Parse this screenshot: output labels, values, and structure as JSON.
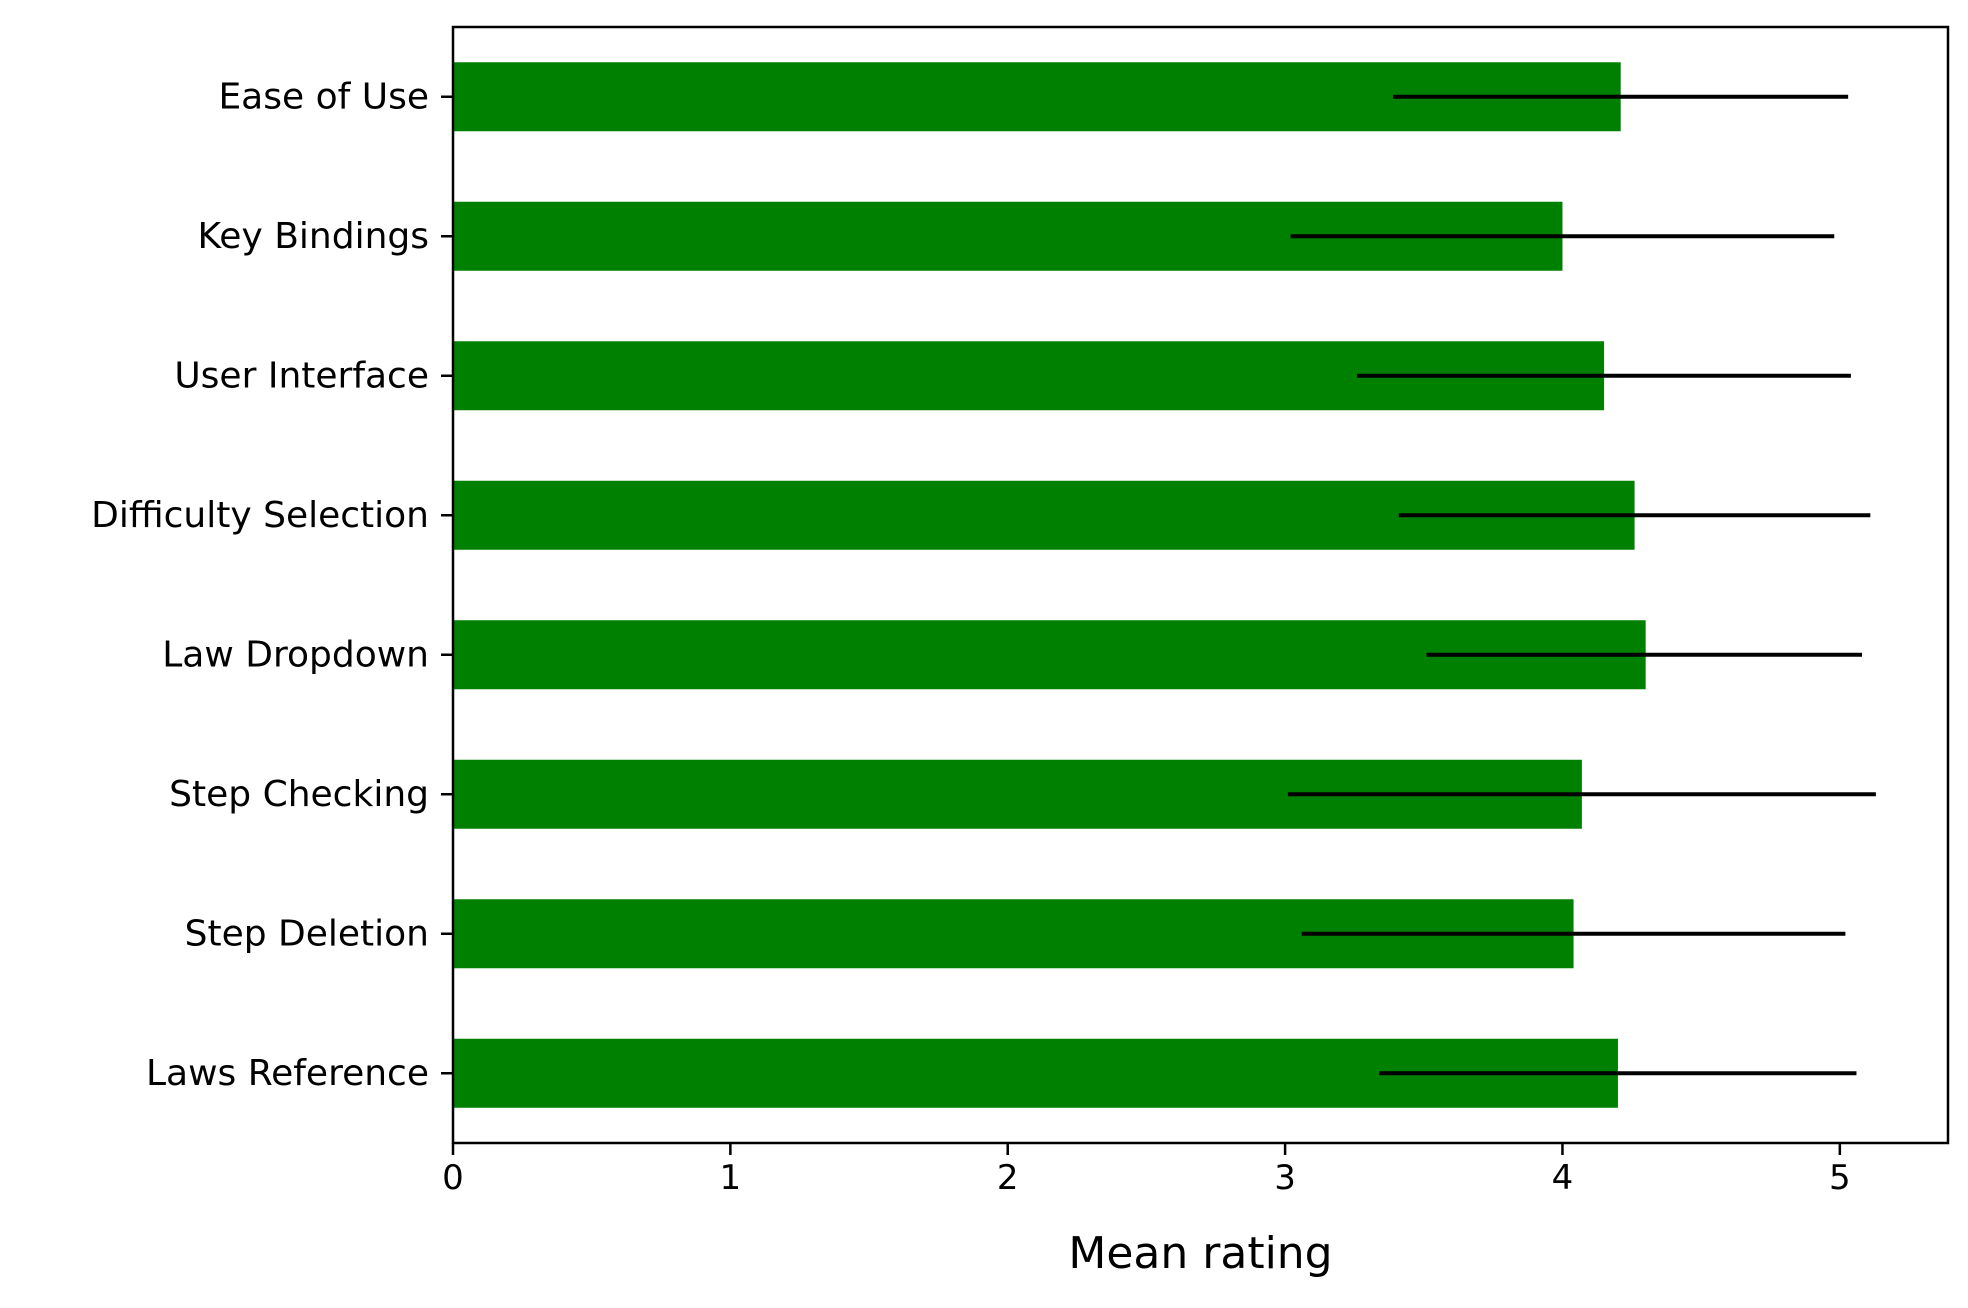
{
  "chart_data": {
    "type": "bar",
    "orientation": "horizontal",
    "categories": [
      "Ease of Use",
      "Key Bindings",
      "User Interface",
      "Difficulty Selection",
      "Law Dropdown",
      "Step Checking",
      "Step Deletion",
      "Laws Reference"
    ],
    "values": [
      4.21,
      4.0,
      4.15,
      4.26,
      4.3,
      4.07,
      4.04,
      4.2
    ],
    "error_bars": [
      {
        "low": 3.39,
        "high": 5.03
      },
      {
        "low": 3.02,
        "high": 4.98
      },
      {
        "low": 3.26,
        "high": 5.04
      },
      {
        "low": 3.41,
        "high": 5.11
      },
      {
        "low": 3.51,
        "high": 5.08
      },
      {
        "low": 3.01,
        "high": 5.13
      },
      {
        "low": 3.06,
        "high": 5.02
      },
      {
        "low": 3.34,
        "high": 5.06
      }
    ],
    "title": "",
    "xlabel": "Mean rating",
    "ylabel": "",
    "xlim": [
      0,
      5.39
    ],
    "xticks": [
      0,
      1,
      2,
      3,
      4,
      5
    ],
    "grid": false,
    "legend": "none",
    "colors": {
      "bar": "#008000",
      "error_bar": "#000000",
      "axis": "#000000"
    }
  }
}
